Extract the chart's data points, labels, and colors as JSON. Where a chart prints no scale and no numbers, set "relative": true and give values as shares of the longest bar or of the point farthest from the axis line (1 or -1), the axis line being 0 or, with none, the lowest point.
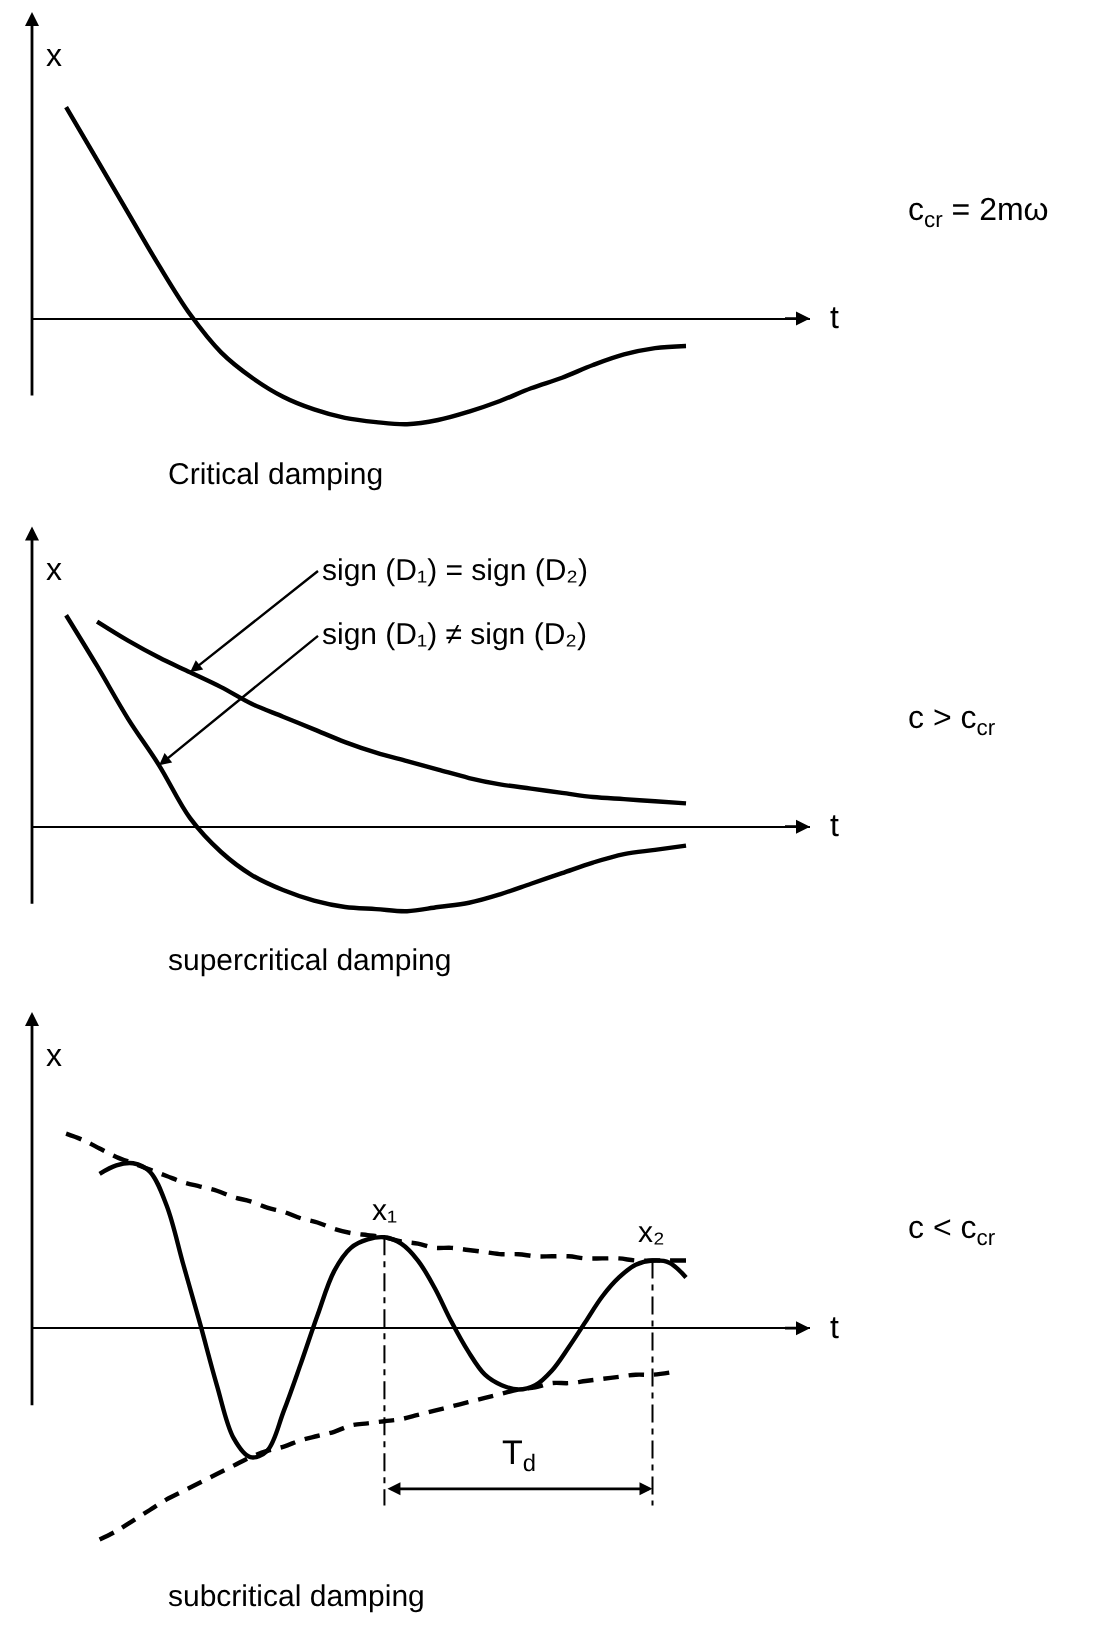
{
  "chart_data": [
    {
      "type": "line",
      "title": "Critical damping",
      "xlabel": "t",
      "ylabel": "x",
      "relative": true,
      "categories": [
        null,
        null,
        null,
        null,
        null,
        null,
        null,
        null,
        null,
        null,
        null,
        null,
        null,
        null,
        null,
        null,
        null,
        null,
        null,
        null,
        null
      ],
      "series": [
        {
          "color": "#000000",
          "values": [
            1.0,
            0.75,
            0.5,
            0.25,
            0.02,
            -0.16,
            -0.28,
            -0.37,
            -0.43,
            -0.47,
            -0.49,
            -0.5,
            -0.48,
            -0.44,
            -0.39,
            -0.33,
            -0.28,
            -0.22,
            -0.17,
            -0.14,
            -0.13
          ]
        }
      ],
      "annotations": [
        "c$_{cr}$ = 2mω"
      ]
    },
    {
      "type": "line",
      "title": "supercritical damping",
      "xlabel": "t",
      "ylabel": "x",
      "relative": true,
      "categories": [
        null,
        null,
        null,
        null,
        null,
        null,
        null,
        null,
        null,
        null,
        null,
        null,
        null,
        null,
        null,
        null,
        null,
        null,
        null,
        null,
        null
      ],
      "series": [
        {
          "color": "#000000",
          "values": [
            null,
            0.97,
            0.88,
            0.8,
            0.73,
            0.66,
            0.58,
            0.52,
            0.46,
            0.4,
            0.35,
            0.31,
            0.27,
            0.23,
            0.2,
            0.18,
            0.16,
            0.14,
            0.13,
            0.12,
            0.11
          ]
        },
        {
          "color": "#000000",
          "values": [
            1.0,
            0.76,
            0.51,
            0.29,
            0.04,
            -0.12,
            -0.23,
            -0.3,
            -0.35,
            -0.38,
            -0.39,
            -0.4,
            -0.38,
            -0.36,
            -0.32,
            -0.27,
            -0.22,
            -0.17,
            -0.13,
            -0.11,
            -0.09
          ]
        }
      ],
      "annotations": [
        "c > c$_{cr}$",
        "sign (D₁) = sign (D₂)",
        "sign (D₁) ≠ sign (D₂)"
      ]
    },
    {
      "type": "line",
      "title": "subcritical damping",
      "xlabel": "t",
      "ylabel": "x",
      "relative": true,
      "categories": [
        null,
        null,
        null,
        null,
        null,
        null,
        null,
        null,
        null,
        null,
        null,
        null,
        null,
        null,
        null,
        null,
        null,
        null,
        null,
        null,
        null,
        null,
        null,
        null,
        null,
        null,
        null,
        null,
        null,
        null,
        null,
        null,
        null,
        null,
        null,
        null,
        null,
        null
      ],
      "series": [
        {
          "color": "#000000",
          "values": [
            null,
            null,
            0.73,
            0.77,
            0.78,
            0.74,
            0.58,
            0.3,
            0.02,
            -0.27,
            -0.52,
            -0.61,
            -0.58,
            -0.39,
            -0.17,
            0.06,
            0.27,
            0.38,
            0.42,
            0.43,
            0.4,
            0.32,
            0.19,
            0.03,
            -0.11,
            -0.22,
            -0.27,
            -0.29,
            -0.27,
            -0.2,
            -0.09,
            0.03,
            0.15,
            0.24,
            0.3,
            0.32,
            0.31,
            0.24
          ]
        },
        {
          "color": "#000000",
          "line_style": "dashed",
          "values": [
            0.92,
            0.89,
            0.85,
            0.81,
            0.78,
            0.75,
            0.72,
            0.69,
            0.67,
            0.65,
            0.62,
            0.6,
            0.57,
            0.55,
            0.52,
            0.5,
            0.47,
            0.45,
            0.44,
            0.43,
            0.41,
            0.4,
            0.38,
            0.38,
            0.37,
            0.36,
            0.35,
            0.35,
            0.34,
            0.34,
            0.34,
            0.33,
            0.33,
            0.33,
            0.32,
            0.32,
            0.32,
            0.32
          ]
        },
        {
          "color": "#000000",
          "line_style": "dashed",
          "values": [
            null,
            null,
            -1.0,
            -0.96,
            -0.91,
            -0.86,
            -0.81,
            -0.77,
            -0.73,
            -0.69,
            -0.65,
            -0.61,
            -0.58,
            -0.56,
            -0.53,
            -0.51,
            -0.49,
            -0.46,
            -0.45,
            -0.44,
            -0.43,
            -0.41,
            -0.39,
            -0.37,
            -0.35,
            -0.33,
            -0.31,
            -0.29,
            -0.28,
            -0.26,
            -0.26,
            -0.25,
            -0.24,
            -0.23,
            -0.22,
            -0.22,
            -0.21,
            null
          ]
        }
      ],
      "annotations": [
        "c < c$_{cr}$",
        {
          "text": "x₁",
          "y": 0.43
        },
        {
          "text": "x₂",
          "y": 0.32
        },
        "T$_{d}$"
      ]
    }
  ]
}
